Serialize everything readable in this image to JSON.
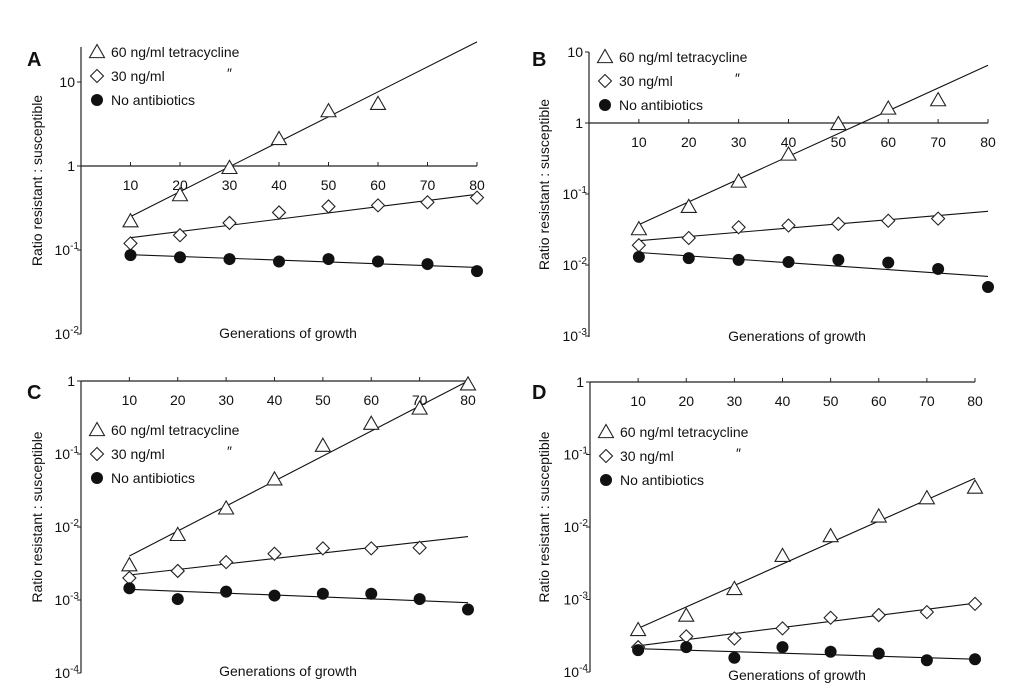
{
  "legend_labels": {
    "tet60": "60 ng/ml tetracycline",
    "tet30": "30 ng/ml",
    "ditto": "″",
    "none": "No antibiotics"
  },
  "colors": {
    "ink": "#111111",
    "marker_fill": "#ffffff"
  },
  "chart_data": [
    {
      "panel": "A",
      "type": "scatter",
      "scale_y": "log",
      "xlabel": "Generations of growth",
      "ylabel": "Ratio resistant : susceptible",
      "xlim": [
        0,
        80
      ],
      "ylim": [
        0.01,
        30
      ],
      "x_ticks": [
        "10",
        "20",
        "30",
        "40",
        "50",
        "60",
        "70",
        "80"
      ],
      "y_ticks": [
        {
          "value": 10,
          "label": "10"
        },
        {
          "value": 1,
          "label": "1"
        },
        {
          "value": 0.1,
          "label": "10",
          "exp": "-1"
        },
        {
          "value": 0.01,
          "label": "10",
          "exp": "-2"
        }
      ],
      "x_axis_at_y": 1,
      "x": [
        10,
        20,
        30,
        40,
        50,
        60,
        70,
        80
      ],
      "series": [
        {
          "name": "60 ng/ml tetracycline",
          "marker": "triangle",
          "values": [
            0.22,
            0.45,
            0.95,
            2.1,
            4.5,
            5.5,
            null,
            null
          ],
          "fit": [
            0.25,
            30
          ]
        },
        {
          "name": "30 ng/ml",
          "marker": "diamond",
          "values": [
            0.12,
            0.15,
            0.21,
            0.28,
            0.33,
            0.34,
            0.37,
            0.42
          ],
          "fit": [
            0.14,
            0.46
          ]
        },
        {
          "name": "No antibiotics",
          "marker": "circle",
          "values": [
            0.087,
            0.082,
            0.078,
            0.073,
            0.078,
            0.073,
            0.068,
            0.056
          ],
          "fit": [
            0.088,
            0.062
          ]
        }
      ]
    },
    {
      "panel": "B",
      "type": "scatter",
      "scale_y": "log",
      "xlabel": "Generations of growth",
      "ylabel": "Ratio resistant : susceptible",
      "xlim": [
        0,
        80
      ],
      "ylim": [
        0.001,
        10
      ],
      "x_ticks": [
        "10",
        "20",
        "30",
        "40",
        "50",
        "60",
        "70",
        "80"
      ],
      "y_ticks": [
        {
          "value": 10,
          "label": "10"
        },
        {
          "value": 1,
          "label": "1"
        },
        {
          "value": 0.1,
          "label": "10",
          "exp": "-1"
        },
        {
          "value": 0.01,
          "label": "10",
          "exp": "-2"
        },
        {
          "value": 0.001,
          "label": "10",
          "exp": "-3"
        }
      ],
      "x_axis_at_y": 1,
      "x": [
        10,
        20,
        30,
        40,
        50,
        60,
        70,
        80
      ],
      "series": [
        {
          "name": "60 ng/ml tetracycline",
          "marker": "triangle",
          "values": [
            0.032,
            0.066,
            0.15,
            0.36,
            0.97,
            1.6,
            2.1,
            null
          ],
          "fit": [
            0.037,
            6.5
          ]
        },
        {
          "name": "30 ng/ml",
          "marker": "diamond",
          "values": [
            0.019,
            0.024,
            0.034,
            0.036,
            0.038,
            0.042,
            0.045,
            null
          ],
          "fit": [
            0.022,
            0.057
          ]
        },
        {
          "name": "No antibiotics",
          "marker": "circle",
          "values": [
            0.013,
            0.0125,
            0.0118,
            0.011,
            0.0118,
            0.0108,
            0.0088,
            0.0049
          ],
          "fit": [
            0.015,
            0.0069
          ]
        }
      ]
    },
    {
      "panel": "C",
      "type": "scatter",
      "scale_y": "log",
      "xlabel": "Generations of growth",
      "ylabel": "Ratio resistant : susceptible",
      "xlim": [
        0,
        80
      ],
      "ylim": [
        0.0001,
        1
      ],
      "x_ticks": [
        "10",
        "20",
        "30",
        "40",
        "50",
        "60",
        "70",
        "80"
      ],
      "y_ticks": [
        {
          "value": 1,
          "label": "1"
        },
        {
          "value": 0.1,
          "label": "10",
          "exp": "-1"
        },
        {
          "value": 0.01,
          "label": "10",
          "exp": "-2"
        },
        {
          "value": 0.001,
          "label": "10",
          "exp": "-3"
        },
        {
          "value": 0.0001,
          "label": "10",
          "exp": "-4"
        }
      ],
      "x_axis_at_y": 1,
      "x": [
        10,
        20,
        30,
        40,
        50,
        60,
        70,
        80
      ],
      "series": [
        {
          "name": "60 ng/ml tetracycline",
          "marker": "triangle",
          "values": [
            0.003,
            0.0078,
            0.018,
            0.045,
            0.13,
            0.26,
            0.42,
            0.9
          ],
          "fit": [
            0.004,
            1.0
          ]
        },
        {
          "name": "30 ng/ml",
          "marker": "diamond",
          "values": [
            0.002,
            0.0025,
            0.0033,
            0.0043,
            0.0051,
            0.0051,
            0.0052,
            null
          ],
          "fit": [
            0.0022,
            0.0074
          ]
        },
        {
          "name": "No antibiotics",
          "marker": "circle",
          "values": [
            0.00145,
            0.00103,
            0.0013,
            0.00115,
            0.00122,
            0.00122,
            0.00103,
            0.00074
          ],
          "fit": [
            0.0014,
            0.00092
          ]
        }
      ]
    },
    {
      "panel": "D",
      "type": "scatter",
      "scale_y": "log",
      "xlabel": "Generations of growth",
      "ylabel": "Ratio resistant : susceptible",
      "xlim": [
        0,
        80
      ],
      "ylim": [
        0.0001,
        1
      ],
      "x_ticks": [
        "10",
        "20",
        "30",
        "40",
        "50",
        "60",
        "70",
        "80"
      ],
      "y_ticks": [
        {
          "value": 1,
          "label": "1"
        },
        {
          "value": 0.1,
          "label": "10",
          "exp": "-1"
        },
        {
          "value": 0.01,
          "label": "10",
          "exp": "-2"
        },
        {
          "value": 0.001,
          "label": "10",
          "exp": "-3"
        },
        {
          "value": 0.0001,
          "label": "10",
          "exp": "-4"
        }
      ],
      "x_axis_at_y": 1,
      "x": [
        10,
        20,
        30,
        40,
        50,
        60,
        70,
        80
      ],
      "series": [
        {
          "name": "60 ng/ml tetracycline",
          "marker": "triangle",
          "values": [
            0.00038,
            0.0006,
            0.0014,
            0.004,
            0.0075,
            0.014,
            0.025,
            0.035
          ],
          "fit": [
            0.0004,
            0.047
          ]
        },
        {
          "name": "30 ng/ml",
          "marker": "diamond",
          "values": [
            0.00022,
            0.00031,
            0.00029,
            0.0004,
            0.00056,
            0.00061,
            0.00067,
            0.00087
          ],
          "fit": [
            0.00023,
            0.00089
          ]
        },
        {
          "name": "No antibiotics",
          "marker": "circle",
          "values": [
            0.0002,
            0.00022,
            0.000157,
            0.00022,
            0.00019,
            0.00018,
            0.000145,
            0.00015
          ],
          "fit": [
            0.00021,
            0.00015
          ]
        }
      ]
    }
  ]
}
